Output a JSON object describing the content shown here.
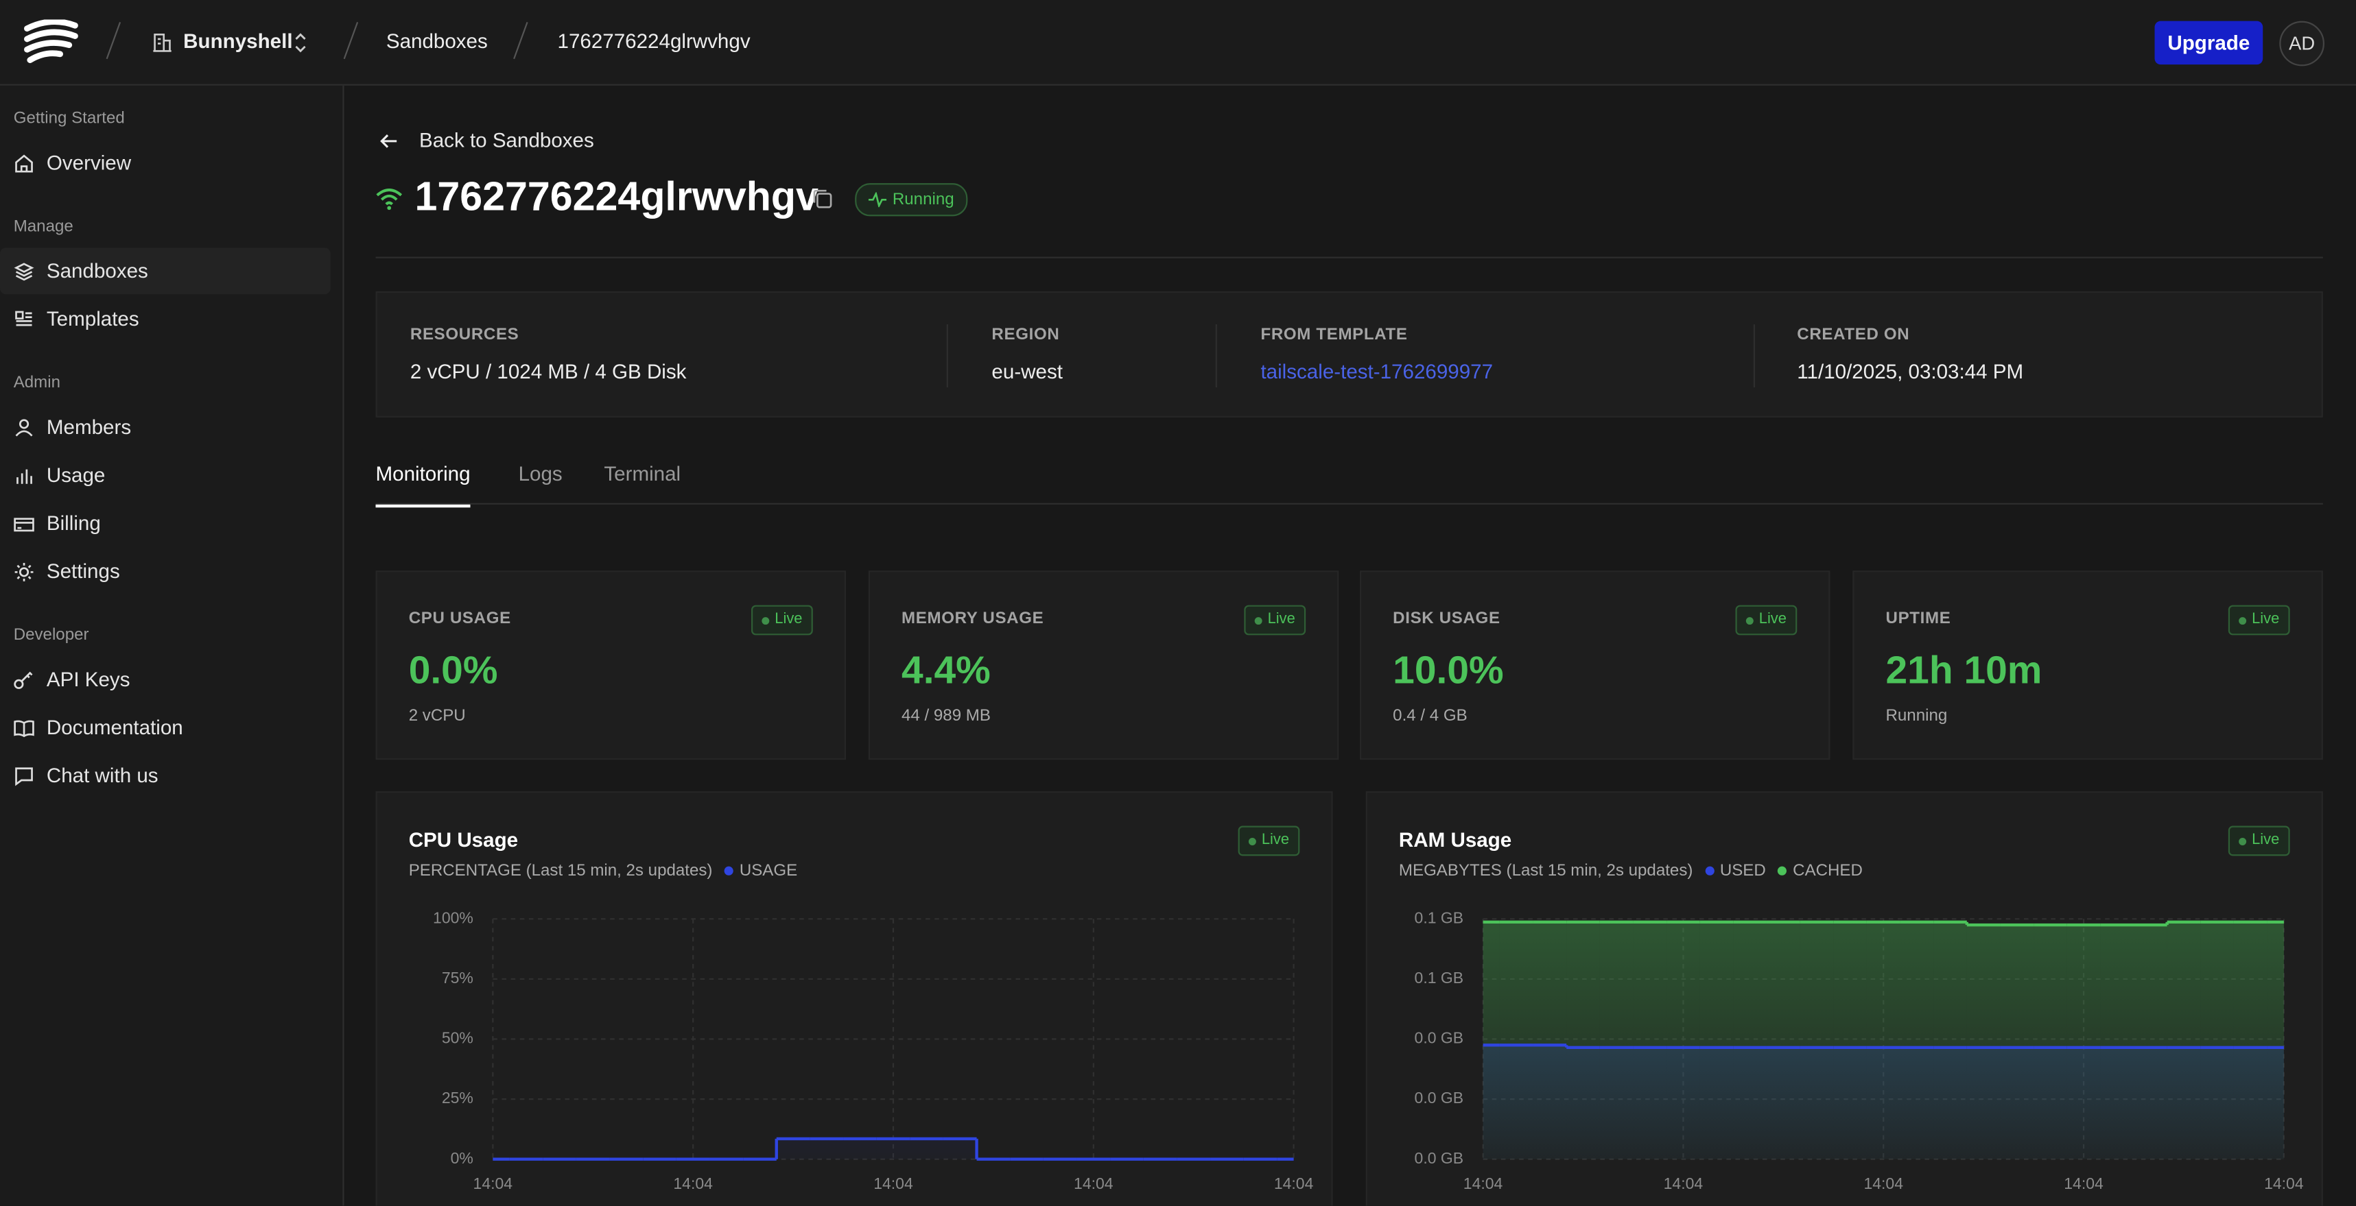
{
  "header": {
    "org": "Bunnyshell",
    "crumbs": [
      "Sandboxes",
      "1762776224glrwvhgv"
    ],
    "upgrade": "Upgrade",
    "avatar": "AD"
  },
  "sidebar": {
    "sections": [
      {
        "title": "Getting Started",
        "items": [
          "Overview"
        ]
      },
      {
        "title": "Manage",
        "items": [
          "Sandboxes",
          "Templates"
        ]
      },
      {
        "title": "Admin",
        "items": [
          "Members",
          "Usage",
          "Billing",
          "Settings"
        ]
      },
      {
        "title": "Developer",
        "items": [
          "API Keys",
          "Documentation",
          "Chat with us"
        ]
      }
    ]
  },
  "page": {
    "back": "Back to Sandboxes",
    "title": "1762776224glrwvhgv",
    "status": "Running",
    "info": [
      {
        "label": "RESOURCES",
        "value": "2 vCPU / 1024 MB / 4 GB Disk"
      },
      {
        "label": "REGION",
        "value": "eu-west"
      },
      {
        "label": "FROM TEMPLATE",
        "value": "tailscale-test-1762699977"
      },
      {
        "label": "CREATED ON",
        "value": "11/10/2025, 03:03:44 PM"
      }
    ],
    "tabs": [
      "Monitoring",
      "Logs",
      "Terminal"
    ],
    "stats": [
      {
        "label": "CPU USAGE",
        "badge": "Live",
        "value": "0.0%",
        "sub": "2 vCPU"
      },
      {
        "label": "MEMORY USAGE",
        "badge": "Live",
        "value": "4.4%",
        "sub": "44 / 989 MB"
      },
      {
        "label": "DISK USAGE",
        "badge": "Live",
        "value": "10.0%",
        "sub": "0.4 / 4 GB"
      },
      {
        "label": "UPTIME",
        "badge": "Live",
        "value": "21h 10m",
        "sub": "Running"
      }
    ]
  },
  "chart_data": [
    {
      "type": "line",
      "title": "CPU Usage",
      "subtitle": "PERCENTAGE (Last 15 min, 2s updates)",
      "badge": "Live",
      "categories": [
        "14:04",
        null,
        null,
        null,
        null,
        null,
        "14:04",
        null,
        null,
        null,
        null,
        null,
        "14:04",
        null,
        null,
        null,
        null,
        null,
        "14:04",
        null,
        null,
        null,
        null,
        null,
        "14:04"
      ],
      "series": [
        {
          "name": "USAGE",
          "color": "#2f45e0",
          "values": [
            0,
            0,
            0,
            0,
            0,
            0,
            0,
            0,
            0,
            8.5,
            8.5,
            8.5,
            8.5,
            8.5,
            8.5,
            0,
            0,
            0,
            0,
            0,
            0,
            0,
            0,
            0,
            0
          ]
        }
      ],
      "ylim": [
        0,
        100
      ],
      "yticks": [
        {
          "value": 0,
          "label": "0%"
        },
        {
          "value": 25,
          "label": "25%"
        },
        {
          "value": 50,
          "label": "50%"
        },
        {
          "value": 75,
          "label": "75%"
        },
        {
          "value": 100,
          "label": "100%"
        }
      ],
      "grid": true
    },
    {
      "type": "line",
      "title": "RAM Usage",
      "subtitle": "MEGABYTES (Last 15 min, 2s updates)",
      "badge": "Live",
      "categories": [
        "14:04",
        null,
        null,
        null,
        null,
        null,
        "14:04",
        null,
        null,
        null,
        null,
        null,
        "14:04",
        null,
        null,
        null,
        null,
        null,
        "14:04",
        null,
        null,
        null,
        null,
        null,
        "14:04"
      ],
      "series": [
        {
          "name": "USED",
          "color": "#2f45e0",
          "values": [
            47.5,
            47.5,
            47.5,
            46.5,
            46.5,
            46.5,
            46.5,
            46.5,
            46.5,
            46.5,
            46.5,
            46.5,
            46.5,
            46.5,
            46.5,
            46.5,
            46.5,
            46.5,
            46.5,
            46.5,
            46.5,
            46.5,
            46.5,
            46.5,
            46.5
          ]
        },
        {
          "name": "CACHED",
          "color": "#4cc35a",
          "values": [
            98.7,
            98.7,
            98.7,
            98.7,
            98.7,
            98.7,
            98.7,
            98.7,
            98.7,
            98.7,
            98.7,
            98.7,
            98.7,
            98.7,
            98.7,
            97.5,
            97.5,
            97.5,
            97.5,
            97.5,
            97.5,
            98.7,
            98.7,
            98.7,
            98.7
          ]
        }
      ],
      "ylim": [
        0,
        100
      ],
      "yticks": [
        {
          "value": 0,
          "label": "0.0 GB"
        },
        {
          "value": 25,
          "label": "0.0 GB"
        },
        {
          "value": 50,
          "label": "0.0 GB"
        },
        {
          "value": 75,
          "label": "0.1 GB"
        },
        {
          "value": 100,
          "label": "0.1 GB"
        }
      ],
      "grid": true
    }
  ]
}
